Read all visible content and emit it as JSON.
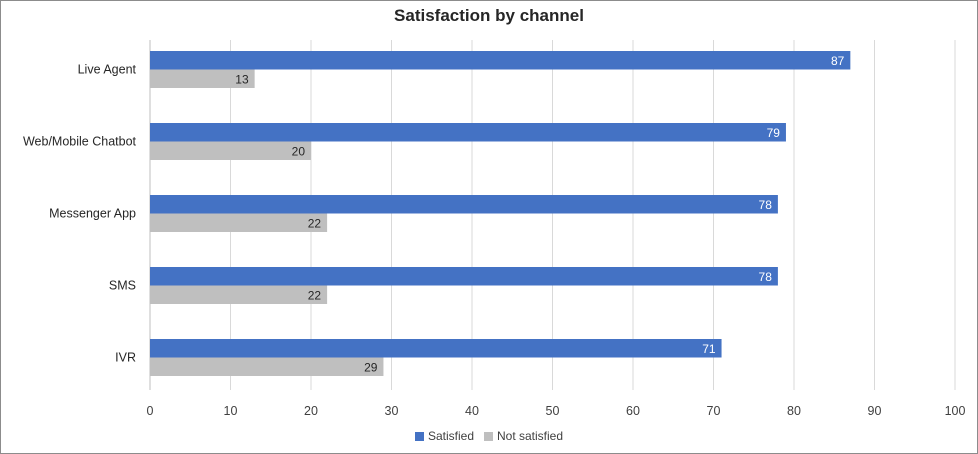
{
  "chart_data": {
    "type": "bar",
    "orientation": "horizontal",
    "title": "Satisfaction by channel",
    "categories": [
      "Live Agent",
      "Web/Mobile Chatbot",
      "Messenger App",
      "SMS",
      "IVR"
    ],
    "series": [
      {
        "name": "Satisfied",
        "values": [
          87,
          79,
          78,
          78,
          71
        ],
        "color": "#4472c4"
      },
      {
        "name": "Not satisfied",
        "values": [
          13,
          20,
          22,
          22,
          29
        ],
        "color": "#bfbfbf"
      }
    ],
    "xlim": [
      0,
      100
    ],
    "xticks": [
      0,
      10,
      20,
      30,
      40,
      50,
      60,
      70,
      80,
      90,
      100
    ],
    "grid": true,
    "legend_position": "bottom",
    "data_labels": true
  }
}
